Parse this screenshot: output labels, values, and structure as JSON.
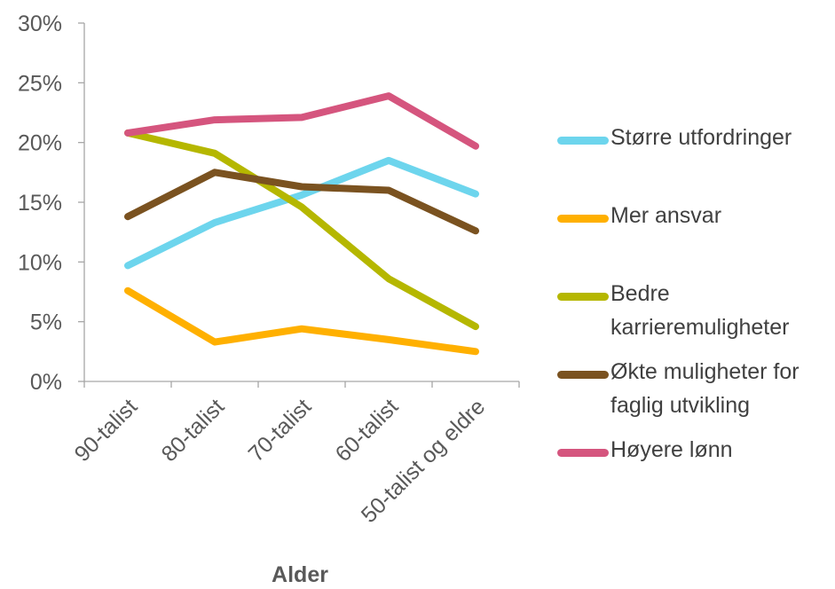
{
  "chart_data": {
    "type": "line",
    "xlabel": "Alder",
    "ylabel": "",
    "ylim": [
      0,
      30
    ],
    "yticks": [
      "0%",
      "5%",
      "10%",
      "15%",
      "20%",
      "25%",
      "30%"
    ],
    "categories": [
      "90-talist",
      "80-talist",
      "70-talist",
      "60-talist",
      "50-talist og eldre"
    ],
    "series": [
      {
        "name": "Større utfordringer",
        "color": "#6dd5ed",
        "values": [
          9.7,
          13.3,
          15.6,
          18.5,
          15.7
        ]
      },
      {
        "name": "Mer ansvar",
        "color": "#ffb000",
        "values": [
          7.6,
          3.3,
          4.4,
          3.5,
          2.5
        ]
      },
      {
        "name": "Bedre karrieremuligheter",
        "color": "#b5b700",
        "values": [
          20.8,
          19.1,
          14.6,
          8.6,
          4.6
        ]
      },
      {
        "name": "Økte muligheter for faglig utvikling",
        "color": "#7a5220",
        "values": [
          13.8,
          17.5,
          16.3,
          16.0,
          12.6
        ]
      },
      {
        "name": "Høyere lønn",
        "color": "#d5557e",
        "values": [
          20.8,
          21.9,
          22.1,
          23.9,
          19.7
        ]
      }
    ],
    "grid": false,
    "legend_position": "right"
  }
}
